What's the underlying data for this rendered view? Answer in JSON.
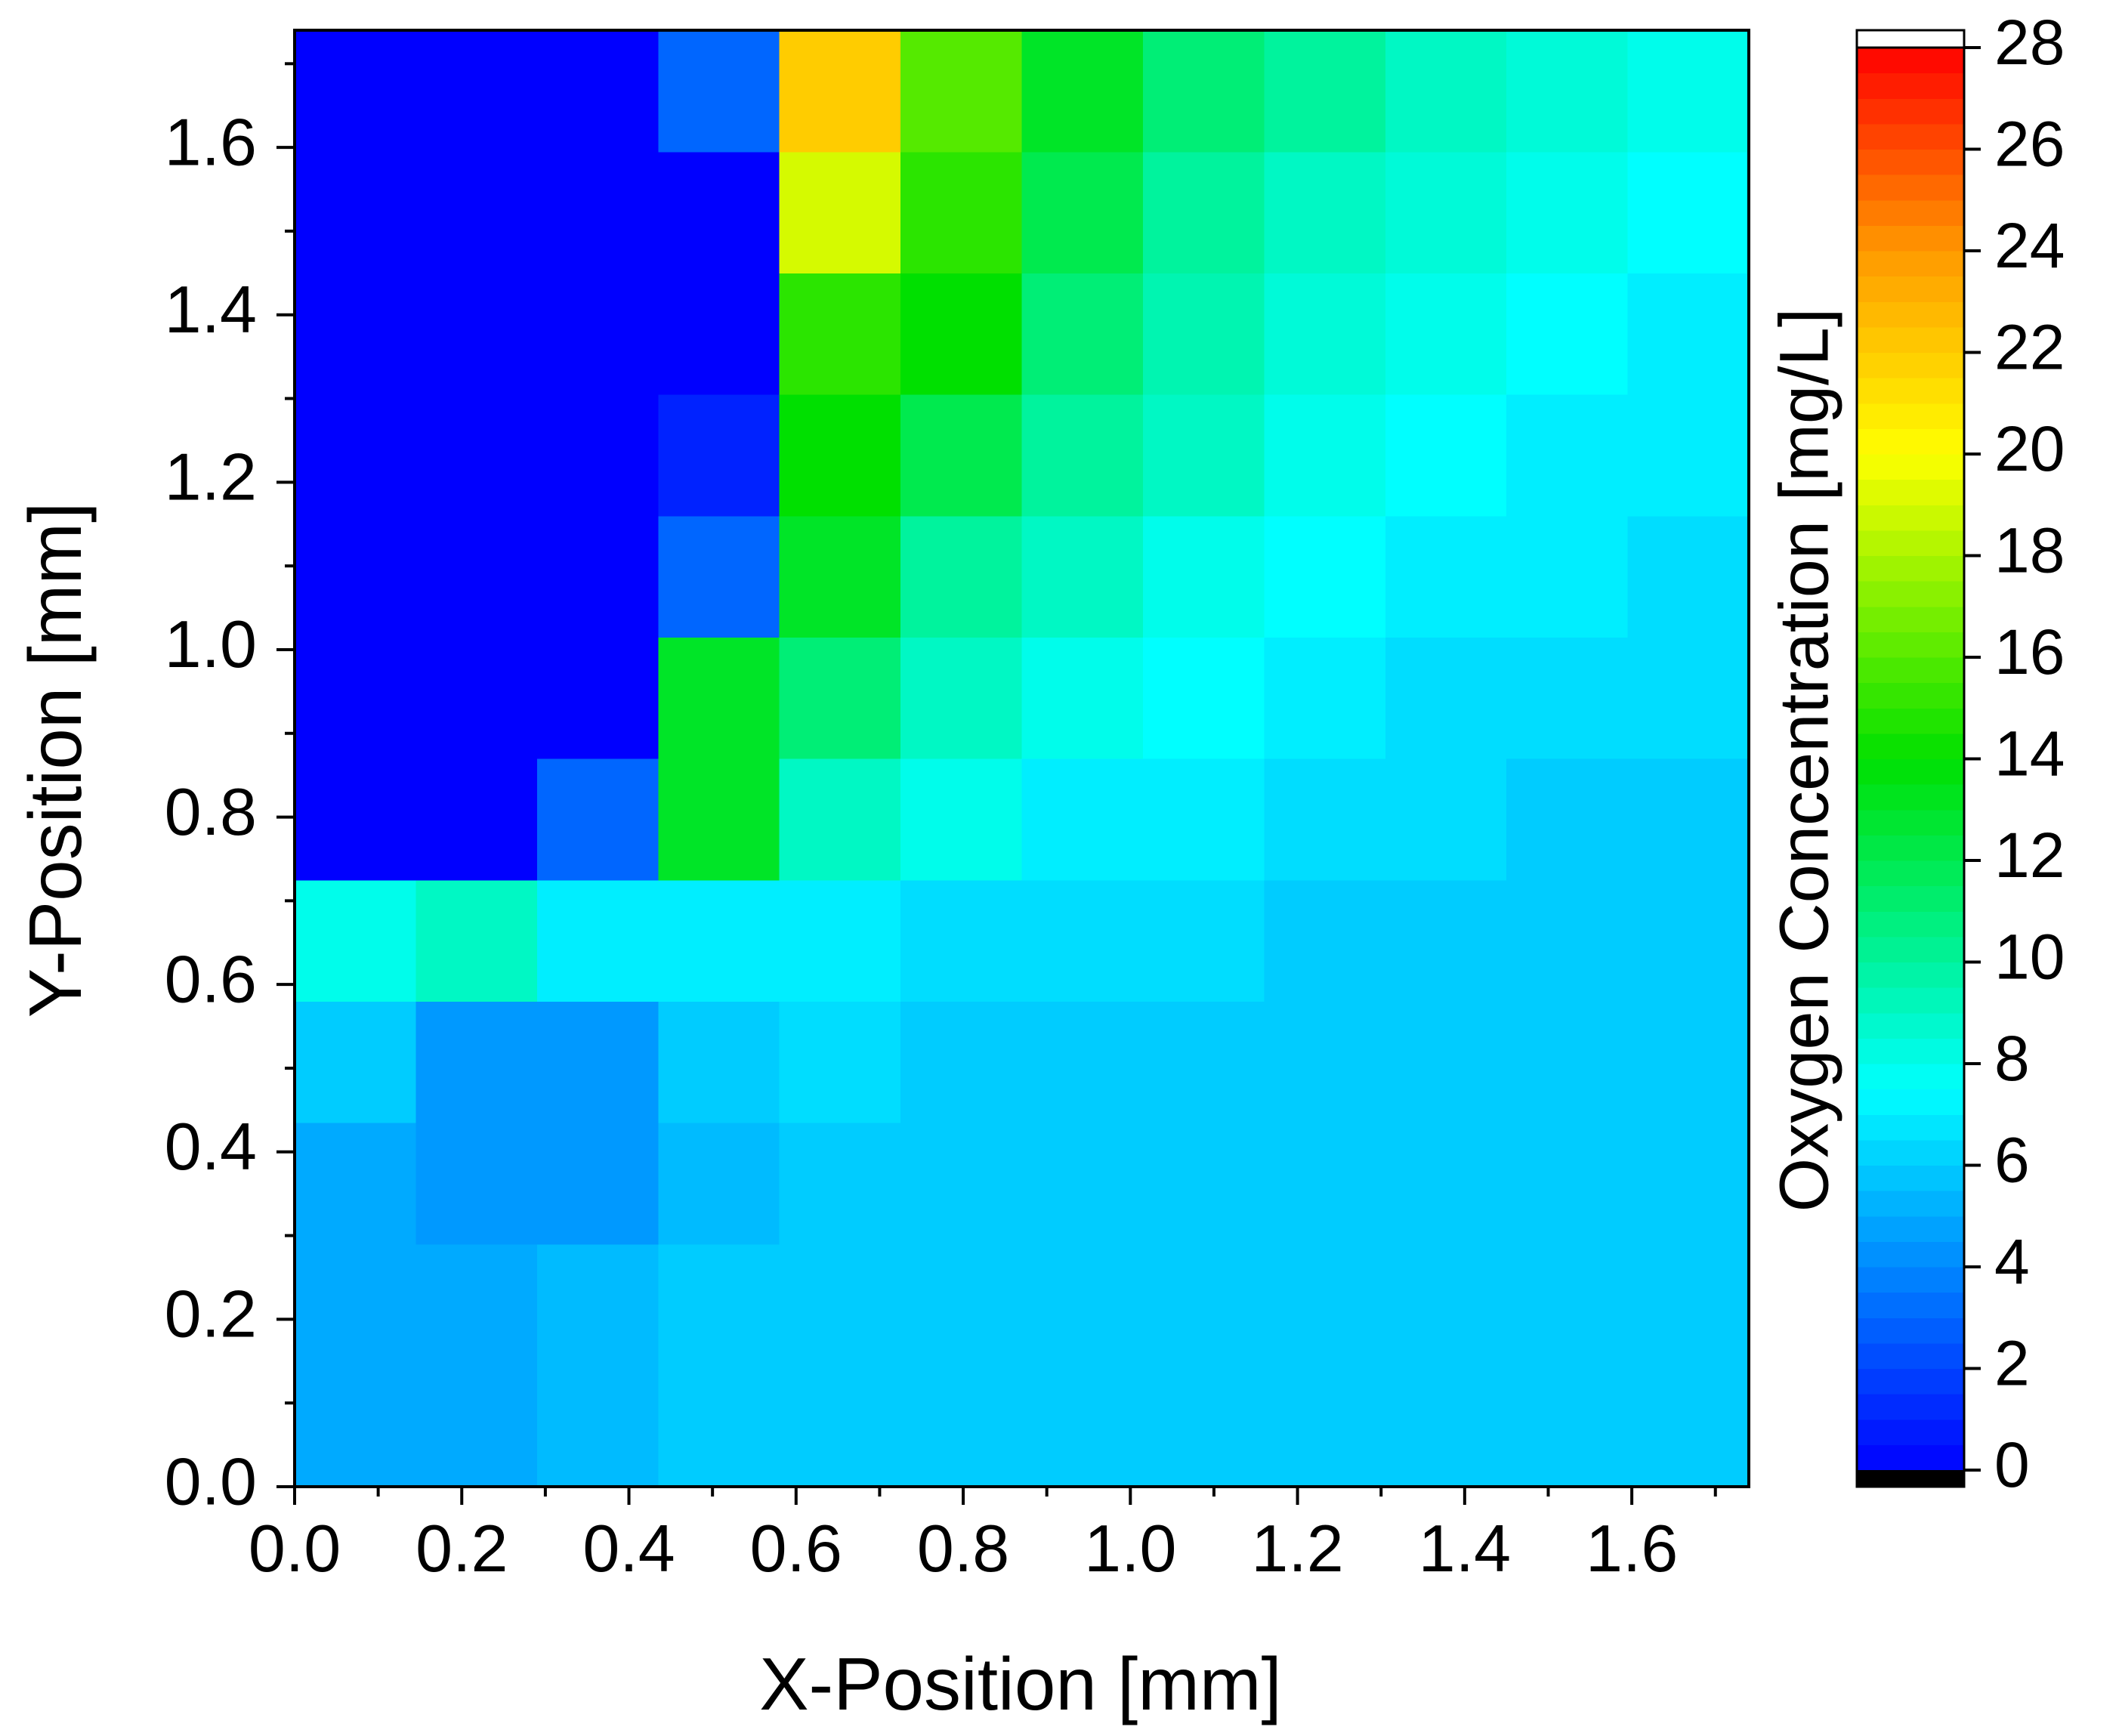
{
  "chart_data": {
    "type": "heatmap",
    "x_label": "X-Position [mm]",
    "y_label": "Y-Position [mm]",
    "xlim": [
      0,
      1.74
    ],
    "ylim": [
      0,
      1.74
    ],
    "xticks": [
      {
        "value": 0,
        "label": "0.0"
      },
      0.2,
      0.4,
      0.6,
      0.8,
      {
        "value": 1,
        "label": "1.0"
      },
      1.2,
      1.4,
      1.6
    ],
    "yticks": [
      {
        "value": 0,
        "label": "0.0"
      },
      0.2,
      0.4,
      0.6,
      0.8,
      {
        "value": 1,
        "label": "1.0"
      },
      1.2,
      1.4,
      1.6
    ],
    "xminorticks": [
      0.1,
      0.3,
      0.5,
      0.7,
      0.9,
      1.1,
      1.3,
      1.5,
      1.7
    ],
    "yminorticks": [
      0.1,
      0.3,
      0.5,
      0.7,
      0.9,
      1.1,
      1.3,
      1.5,
      1.7
    ],
    "x_edges": [
      0,
      0.145,
      0.29,
      0.435,
      0.58,
      0.725,
      0.87,
      1.015,
      1.16,
      1.305,
      1.45,
      1.595,
      1.74
    ],
    "y_edges": [
      0,
      0.145,
      0.29,
      0.435,
      0.58,
      0.725,
      0.87,
      1.015,
      1.16,
      1.305,
      1.45,
      1.595,
      1.74
    ],
    "z": [
      [
        5,
        5,
        5.5,
        6,
        6,
        6,
        6,
        6,
        6,
        6,
        6,
        6
      ],
      [
        5,
        5,
        5.5,
        6,
        6,
        6,
        6,
        6,
        6,
        6,
        6,
        6
      ],
      [
        5,
        4.5,
        4.5,
        5.5,
        6,
        6,
        6,
        6,
        6,
        6,
        6,
        6
      ],
      [
        6,
        4.5,
        4.5,
        6,
        6.5,
        6,
        6,
        6,
        6,
        6,
        6,
        6
      ],
      [
        8,
        9,
        7,
        7,
        7,
        6.5,
        6.5,
        6.5,
        6,
        6,
        6,
        6
      ],
      [
        0,
        0,
        3,
        13,
        9,
        8,
        7,
        7,
        6.5,
        6.5,
        6,
        6
      ],
      [
        0,
        0,
        0,
        13,
        11,
        9,
        8,
        7.5,
        7,
        6.5,
        6.5,
        6.5
      ],
      [
        0,
        0,
        0,
        3,
        13,
        10,
        9,
        8,
        7.5,
        7,
        7,
        6.5
      ],
      [
        0,
        0,
        0,
        1,
        14,
        12,
        10,
        9,
        8,
        7.5,
        7,
        7
      ],
      [
        0,
        0,
        0,
        0,
        15,
        14,
        11,
        9.5,
        8.5,
        8,
        7.5,
        7
      ],
      [
        0,
        0,
        0,
        0,
        19,
        15,
        12,
        10,
        9,
        8.5,
        8,
        7.5
      ],
      [
        0,
        0,
        0,
        3,
        22,
        16,
        13,
        11,
        10,
        9,
        8.5,
        8
      ]
    ],
    "colorbar": {
      "label": "Oxygen Concentration [mg/L]",
      "lim": [
        0,
        28
      ],
      "ticks": [
        0,
        2,
        4,
        6,
        8,
        10,
        12,
        14,
        16,
        18,
        20,
        22,
        24,
        26,
        28
      ],
      "colorscale": [
        [
          0,
          "#0000ff"
        ],
        [
          7.5,
          "#00ffff"
        ],
        [
          14,
          "#00e000"
        ],
        [
          20,
          "#ffff00"
        ],
        [
          24,
          "#ff9900"
        ],
        [
          28,
          "#ff0000"
        ]
      ],
      "under_color": "#000000",
      "over_color": "#ffffff"
    }
  }
}
